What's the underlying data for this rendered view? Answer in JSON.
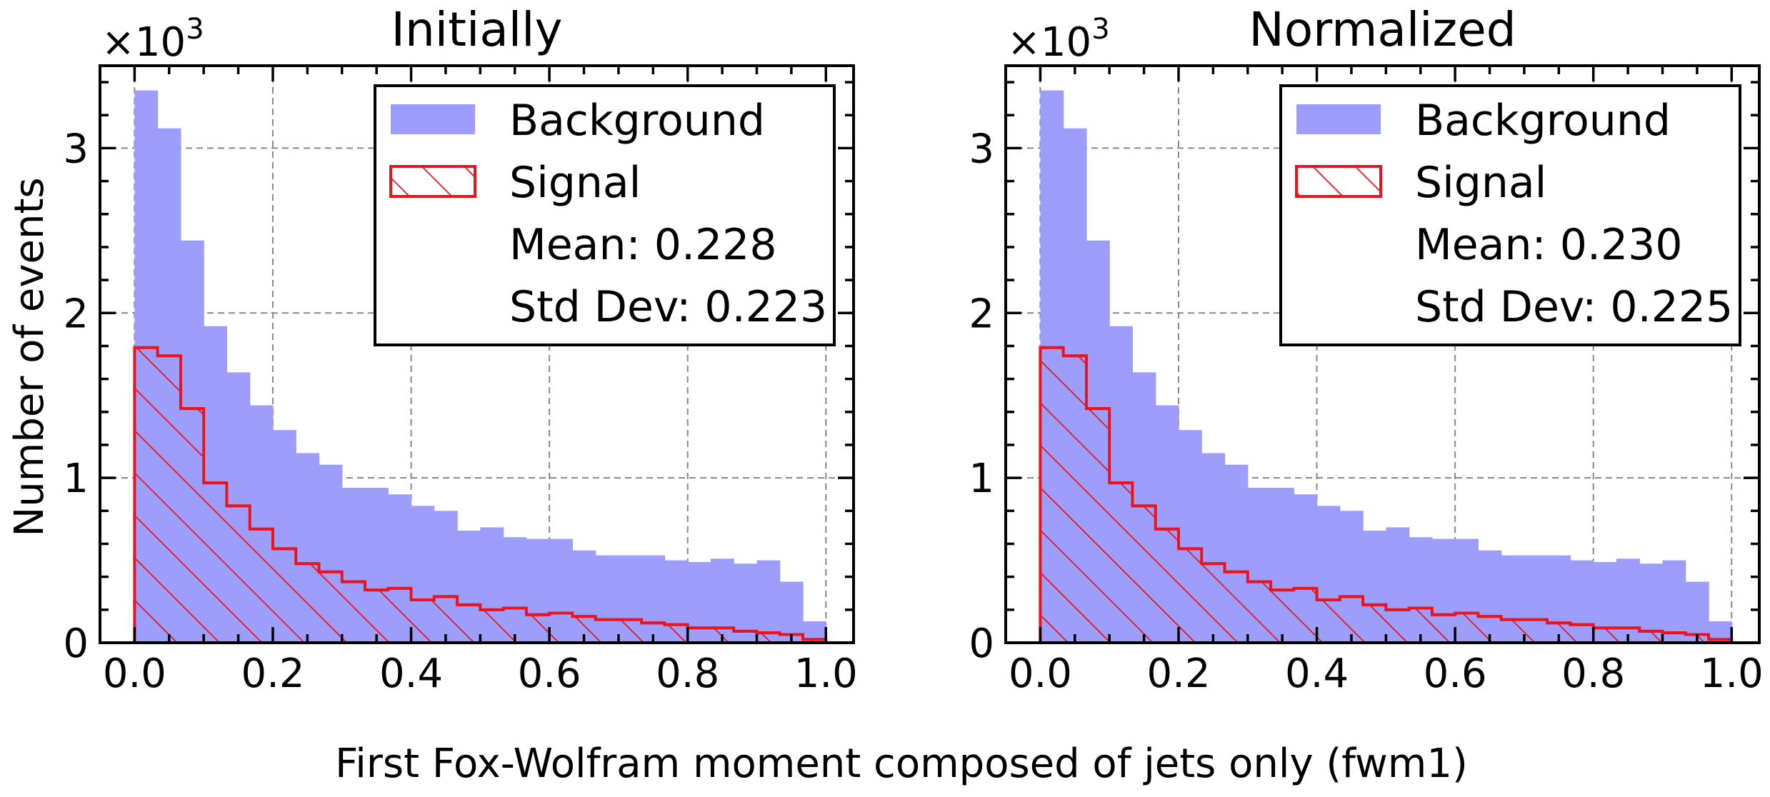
{
  "figure": {
    "xlabel": "First Fox-Wolfram moment composed of jets only (fwm1)",
    "ylabel": "Number of events"
  },
  "chart_data": [
    {
      "type": "bar",
      "title": "Initially",
      "scale_label": "×10",
      "scale_exp": "3",
      "xlim": [
        -0.05,
        1.04
      ],
      "ylim": [
        0,
        3.5
      ],
      "xticks": [
        "0.0",
        "0.2",
        "0.4",
        "0.6",
        "0.8",
        "1.0"
      ],
      "yticks": [
        "0",
        "1",
        "2",
        "3"
      ],
      "grid": true,
      "legend_position": "top-right",
      "bin_edges": [
        0,
        0.0333,
        0.0667,
        0.1,
        0.1333,
        0.1667,
        0.2,
        0.2333,
        0.2667,
        0.3,
        0.3333,
        0.3667,
        0.4,
        0.4333,
        0.4667,
        0.5,
        0.5333,
        0.5667,
        0.6,
        0.6333,
        0.6667,
        0.7,
        0.7333,
        0.7667,
        0.8,
        0.8333,
        0.8667,
        0.9,
        0.9333,
        0.9667,
        1.0
      ],
      "series": [
        {
          "name": "Background",
          "style": "filled",
          "color": "#9d9dfb",
          "values": [
            3.35,
            3.12,
            2.44,
            1.92,
            1.64,
            1.44,
            1.29,
            1.15,
            1.08,
            0.94,
            0.94,
            0.9,
            0.83,
            0.8,
            0.68,
            0.7,
            0.64,
            0.63,
            0.63,
            0.56,
            0.53,
            0.53,
            0.53,
            0.5,
            0.49,
            0.51,
            0.48,
            0.5,
            0.37,
            0.13
          ]
        },
        {
          "name": "Signal",
          "style": "hatched",
          "color": "#e8141e",
          "values": [
            1.79,
            1.74,
            1.42,
            0.97,
            0.83,
            0.69,
            0.57,
            0.48,
            0.43,
            0.37,
            0.32,
            0.33,
            0.26,
            0.28,
            0.23,
            0.2,
            0.21,
            0.17,
            0.18,
            0.16,
            0.14,
            0.14,
            0.12,
            0.11,
            0.09,
            0.09,
            0.07,
            0.06,
            0.05,
            0.02
          ]
        }
      ],
      "legend": {
        "background_label": "Background",
        "signal_label": "Signal",
        "mean_text": "Mean: 0.228",
        "std_text": "Std Dev: 0.223"
      }
    },
    {
      "type": "bar",
      "title": "Normalized",
      "scale_label": "×10",
      "scale_exp": "3",
      "xlim": [
        -0.05,
        1.04
      ],
      "ylim": [
        0,
        3.5
      ],
      "xticks": [
        "0.0",
        "0.2",
        "0.4",
        "0.6",
        "0.8",
        "1.0"
      ],
      "yticks": [
        "0",
        "1",
        "2",
        "3"
      ],
      "grid": true,
      "legend_position": "top-right",
      "bin_edges": [
        0,
        0.0333,
        0.0667,
        0.1,
        0.1333,
        0.1667,
        0.2,
        0.2333,
        0.2667,
        0.3,
        0.3333,
        0.3667,
        0.4,
        0.4333,
        0.4667,
        0.5,
        0.5333,
        0.5667,
        0.6,
        0.6333,
        0.6667,
        0.7,
        0.7333,
        0.7667,
        0.8,
        0.8333,
        0.8667,
        0.9,
        0.9333,
        0.9667,
        1.0
      ],
      "series": [
        {
          "name": "Background",
          "style": "filled",
          "color": "#9d9dfb",
          "values": [
            3.35,
            3.12,
            2.44,
            1.92,
            1.64,
            1.44,
            1.29,
            1.15,
            1.08,
            0.94,
            0.94,
            0.9,
            0.83,
            0.8,
            0.68,
            0.7,
            0.64,
            0.63,
            0.63,
            0.56,
            0.53,
            0.53,
            0.53,
            0.5,
            0.49,
            0.51,
            0.48,
            0.5,
            0.37,
            0.13
          ]
        },
        {
          "name": "Signal",
          "style": "hatched",
          "color": "#e8141e",
          "values": [
            1.79,
            1.74,
            1.42,
            0.97,
            0.83,
            0.69,
            0.57,
            0.48,
            0.43,
            0.37,
            0.32,
            0.33,
            0.26,
            0.28,
            0.23,
            0.2,
            0.21,
            0.17,
            0.18,
            0.16,
            0.14,
            0.14,
            0.12,
            0.11,
            0.09,
            0.09,
            0.07,
            0.06,
            0.05,
            0.02
          ]
        }
      ],
      "legend": {
        "background_label": "Background",
        "signal_label": "Signal",
        "mean_text": "Mean: 0.230",
        "std_text": "Std Dev: 0.225"
      }
    }
  ]
}
